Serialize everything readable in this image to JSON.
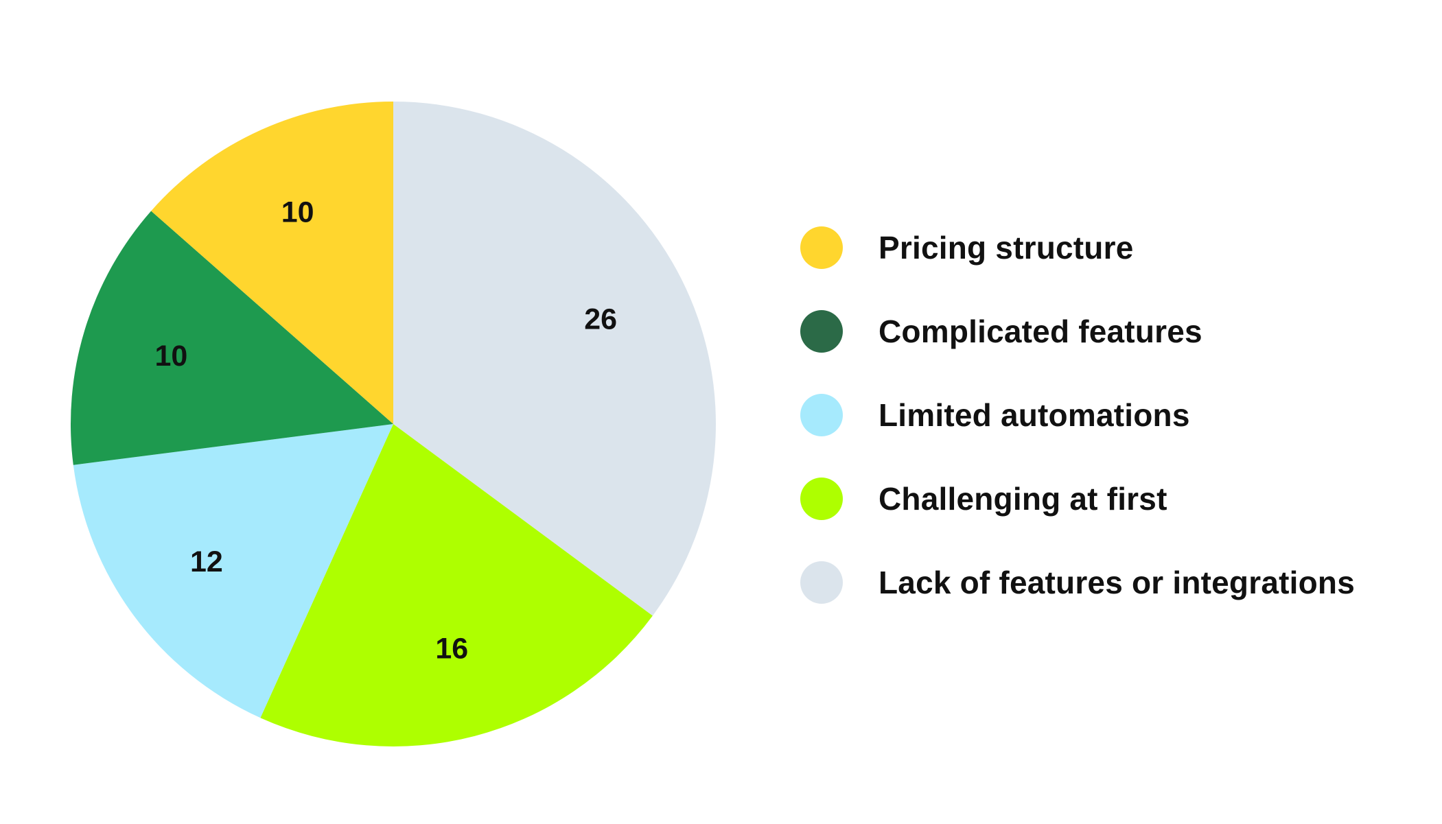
{
  "chart_data": {
    "type": "pie",
    "start_angle_deg": 0,
    "direction": "clockwise",
    "slices": [
      {
        "label": "Lack of features or integrations",
        "value": 26,
        "color": "#dbe4ec"
      },
      {
        "label": "Challenging at first",
        "value": 16,
        "color": "#aeff00"
      },
      {
        "label": "Limited automations",
        "value": 12,
        "color": "#a6eafd"
      },
      {
        "label": "Complicated features",
        "value": 10,
        "color": "#1e9a4f"
      },
      {
        "label": "Pricing structure",
        "value": 10,
        "color": "#ffd62e"
      }
    ],
    "legend": [
      {
        "label": "Pricing structure",
        "color": "#ffd62e"
      },
      {
        "label": "Complicated features",
        "color": "#2b6a47"
      },
      {
        "label": "Limited automations",
        "color": "#a6eafd"
      },
      {
        "label": "Challenging at first",
        "color": "#aeff00"
      },
      {
        "label": "Lack of features or integrations",
        "color": "#dbe4ec"
      }
    ],
    "legend_position": "right"
  }
}
